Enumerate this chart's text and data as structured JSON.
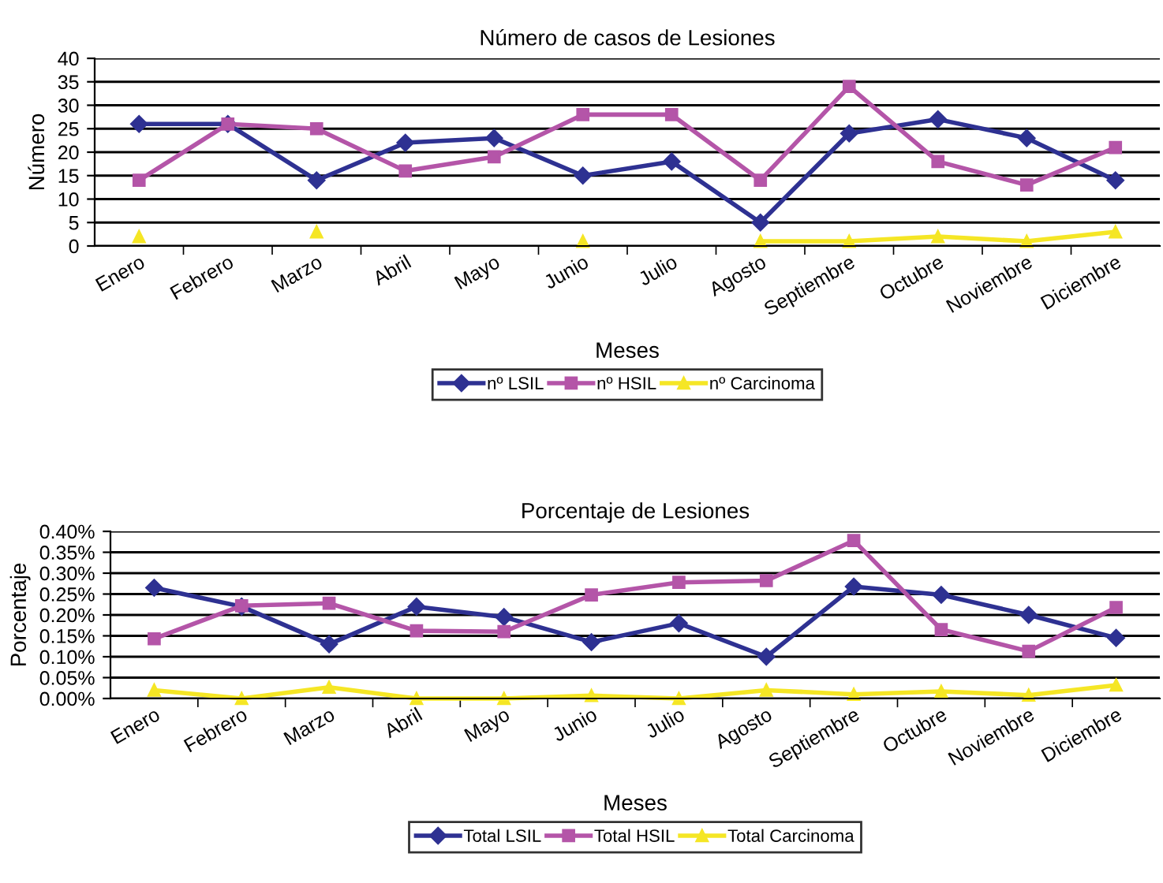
{
  "chart_data": [
    {
      "type": "line",
      "title": "Número de casos de Lesiones",
      "xlabel": "Meses",
      "ylabel": "Número",
      "categories": [
        "Enero",
        "Febrero",
        "Marzo",
        "Abril",
        "Mayo",
        "Junio",
        "Julio",
        "Agosto",
        "Septiembre",
        "Octubre",
        "Noviembre",
        "Diciembre"
      ],
      "series": [
        {
          "name": "nº LSIL",
          "color": "#2e3192",
          "marker": "diamond",
          "values": [
            26,
            26,
            14,
            22,
            23,
            15,
            18,
            5,
            24,
            27,
            23,
            14
          ]
        },
        {
          "name": "nº HSIL",
          "color": "#b455a8",
          "marker": "square",
          "values": [
            14,
            26,
            25,
            16,
            19,
            28,
            28,
            14,
            34,
            18,
            13,
            21
          ]
        },
        {
          "name": "nº Carcinoma",
          "color": "#f5e625",
          "marker": "triangle",
          "values": [
            2,
            null,
            3,
            null,
            null,
            1,
            null,
            1,
            1,
            2,
            1,
            3
          ]
        }
      ],
      "ylim": [
        0,
        40
      ],
      "yticks": [
        0,
        5,
        10,
        15,
        20,
        25,
        30,
        35,
        40
      ],
      "grid": "y",
      "legend": "bottom"
    },
    {
      "type": "line",
      "title": "Porcentaje de Lesiones",
      "xlabel": "Meses",
      "ylabel": "Porcentaje",
      "categories": [
        "Enero",
        "Febrero",
        "Marzo",
        "Abril",
        "Mayo",
        "Junio",
        "Julio",
        "Agosto",
        "Septiembre",
        "Octubre",
        "Noviembre",
        "Diciembre"
      ],
      "series": [
        {
          "name": "Total LSIL",
          "color": "#2e3192",
          "marker": "diamond",
          "values": [
            0.265,
            0.22,
            0.13,
            0.22,
            0.195,
            0.135,
            0.18,
            0.1,
            0.268,
            0.248,
            0.2,
            0.145
          ]
        },
        {
          "name": "Total HSIL",
          "color": "#b455a8",
          "marker": "square",
          "values": [
            0.143,
            0.222,
            0.228,
            0.162,
            0.16,
            0.248,
            0.278,
            0.282,
            0.378,
            0.165,
            0.113,
            0.218
          ]
        },
        {
          "name": "Total Carcinoma",
          "color": "#f5e625",
          "marker": "triangle",
          "values": [
            0.02,
            0,
            0.027,
            0,
            0,
            0.007,
            0,
            0.02,
            0.01,
            0.017,
            0.008,
            0.032
          ]
        }
      ],
      "ylim": [
        0,
        0.4
      ],
      "yticks": [
        {
          "value": 0,
          "label": "0.00%"
        },
        {
          "value": 0.05,
          "label": "0.05%"
        },
        {
          "value": 0.1,
          "label": "0.10%"
        },
        {
          "value": 0.15,
          "label": "0.15%"
        },
        {
          "value": 0.2,
          "label": "0.20%"
        },
        {
          "value": 0.25,
          "label": "0.25%"
        },
        {
          "value": 0.3,
          "label": "0.30%"
        },
        {
          "value": 0.35,
          "label": "0.35%"
        },
        {
          "value": 0.4,
          "label": "0.40%"
        }
      ],
      "grid": "y",
      "legend": "bottom"
    }
  ]
}
